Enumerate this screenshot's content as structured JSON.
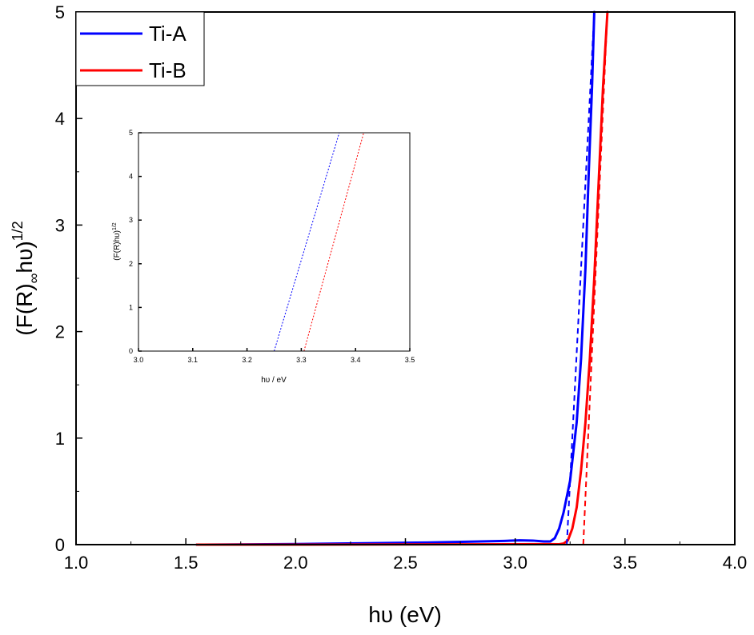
{
  "chart_data": [
    {
      "type": "line",
      "title": "",
      "xlabel_base": "hυ",
      "xlabel_unit": "(eV)",
      "ylabel": "(F(R)∞hυ)1/2",
      "ylabel_parts": {
        "open": "(F(R)",
        "sub": "∞",
        "mid": "hυ)",
        "sup": "1/2"
      },
      "xlim": [
        1.0,
        4.0
      ],
      "ylim": [
        0,
        5
      ],
      "xticks": [
        "1.0",
        "1.5",
        "2.0",
        "2.5",
        "3.0",
        "3.5",
        "4.0"
      ],
      "yticks": [
        "0",
        "1",
        "2",
        "3",
        "4",
        "5"
      ],
      "grid": false,
      "legend_position": "top-left",
      "series": [
        {
          "name": "Ti-A",
          "color": "#0000ff",
          "style": "solid",
          "points": [
            [
              1.55,
              0.0
            ],
            [
              1.8,
              0.003
            ],
            [
              2.0,
              0.006
            ],
            [
              2.2,
              0.01
            ],
            [
              2.4,
              0.015
            ],
            [
              2.6,
              0.02
            ],
            [
              2.8,
              0.028
            ],
            [
              2.95,
              0.035
            ],
            [
              3.02,
              0.04
            ],
            [
              3.08,
              0.038
            ],
            [
              3.13,
              0.03
            ],
            [
              3.16,
              0.03
            ],
            [
              3.18,
              0.06
            ],
            [
              3.2,
              0.15
            ],
            [
              3.22,
              0.3
            ],
            [
              3.25,
              0.6
            ],
            [
              3.28,
              1.15
            ],
            [
              3.3,
              1.75
            ],
            [
              3.32,
              2.6
            ],
            [
              3.335,
              3.5
            ],
            [
              3.35,
              4.3
            ],
            [
              3.36,
              5.0
            ]
          ]
        },
        {
          "name": "Ti-B",
          "color": "#ff0000",
          "style": "solid",
          "points": [
            [
              1.55,
              0.0
            ],
            [
              2.0,
              0.0
            ],
            [
              2.5,
              0.002
            ],
            [
              3.0,
              0.004
            ],
            [
              3.15,
              0.005
            ],
            [
              3.2,
              0.004
            ],
            [
              3.22,
              0.01
            ],
            [
              3.24,
              0.04
            ],
            [
              3.26,
              0.15
            ],
            [
              3.28,
              0.35
            ],
            [
              3.3,
              0.7
            ],
            [
              3.32,
              1.15
            ],
            [
              3.34,
              1.75
            ],
            [
              3.36,
              2.5
            ],
            [
              3.38,
              3.4
            ],
            [
              3.4,
              4.3
            ],
            [
              3.42,
              5.0
            ]
          ]
        },
        {
          "name": "",
          "color": "#0000ff",
          "style": "dashed",
          "points": [
            [
              3.235,
              0.0
            ],
            [
              3.36,
              5.0
            ]
          ]
        },
        {
          "name": "",
          "color": "#ff0000",
          "style": "dashed",
          "points": [
            [
              3.31,
              0.0
            ],
            [
              3.42,
              5.0
            ]
          ]
        }
      ]
    },
    {
      "type": "line",
      "title": "",
      "xlabel": "hυ / eV",
      "ylabel": "(F(R)hυ)1/2",
      "ylabel_parts": {
        "base": "(F(R)hυ)",
        "sup": "1/2"
      },
      "xlim": [
        3.0,
        3.5
      ],
      "ylim": [
        0,
        5
      ],
      "xticks": [
        "3.0",
        "3.1",
        "3.2",
        "3.3",
        "3.4",
        "3.5"
      ],
      "yticks": [
        "0",
        "1",
        "2",
        "3",
        "4",
        "5"
      ],
      "grid": false,
      "series": [
        {
          "name": "",
          "color": "#0000ff",
          "style": "dotted",
          "points": [
            [
              3.25,
              0.0
            ],
            [
              3.37,
              5.0
            ]
          ]
        },
        {
          "name": "",
          "color": "#ff0000",
          "style": "dotted",
          "points": [
            [
              3.305,
              0.0
            ],
            [
              3.415,
              5.0
            ]
          ]
        }
      ]
    }
  ]
}
